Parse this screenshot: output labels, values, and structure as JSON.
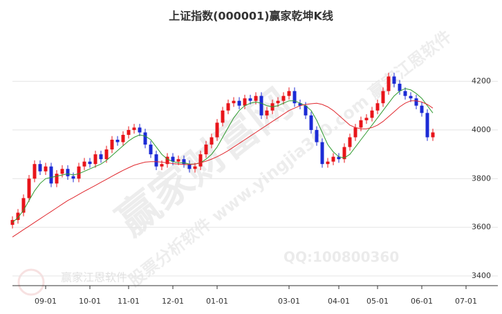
{
  "chart_data": {
    "type": "candlestick",
    "title": "上证指数(000001)赢家乾坤K线",
    "watermarks": [
      "赢家财富网",
      "股票分析软件 www.yingjia360.com 赢家江恩软件",
      "QQ:100800360",
      "赢家江恩软件"
    ],
    "up_color": "#e8141a",
    "down_color": "#1c2bd6",
    "ylim": [
      3380,
      4400
    ],
    "yticks": [
      3400,
      3600,
      3800,
      4000,
      4200
    ],
    "grid": true,
    "categories": [
      null,
      null,
      null,
      null,
      null,
      null,
      "09-01",
      null,
      null,
      null,
      null,
      null,
      null,
      null,
      "10-01",
      null,
      null,
      null,
      null,
      null,
      null,
      "11-01",
      null,
      null,
      null,
      null,
      null,
      null,
      null,
      "12-01",
      null,
      null,
      null,
      null,
      null,
      null,
      null,
      "01-01",
      null,
      null,
      null,
      null,
      null,
      null,
      null,
      null,
      null,
      null,
      null,
      null,
      "03-01",
      null,
      null,
      null,
      null,
      null,
      null,
      null,
      null,
      "04-01",
      null,
      null,
      null,
      null,
      null,
      null,
      "05-01",
      null,
      null,
      null,
      null,
      null,
      null,
      null,
      "06-01",
      null,
      null,
      null,
      null,
      null,
      null,
      null,
      "07-01",
      null,
      null,
      null,
      null,
      null
    ],
    "open": [
      3610,
      3630,
      3660,
      3720,
      3800,
      3860,
      3830,
      3850,
      3780,
      3820,
      3840,
      3810,
      3800,
      3850,
      3870,
      3860,
      3900,
      3880,
      3920,
      3960,
      3950,
      3980,
      4000,
      4010,
      3990,
      3940,
      3900,
      3850,
      3860,
      3890,
      3870,
      3880,
      3860,
      3840,
      3850,
      3900,
      3940,
      3970,
      4030,
      4080,
      4110,
      4120,
      4100,
      4130,
      4120,
      4140,
      4060,
      4080,
      4110,
      4120,
      4140,
      4160,
      4110,
      4100,
      4060,
      4000,
      3950,
      3860,
      3870,
      3890,
      3880,
      3930,
      3970,
      4010,
      4040,
      4050,
      4080,
      4110,
      4160,
      4220,
      4190,
      4160,
      4140,
      4130,
      4100,
      4070,
      3970,
      null,
      null,
      null,
      null,
      null,
      null,
      null,
      null,
      null,
      null,
      null
    ],
    "high": [
      3645,
      3675,
      3735,
      3815,
      3875,
      3875,
      3865,
      3865,
      3835,
      3855,
      3855,
      3825,
      3865,
      3885,
      3885,
      3915,
      3915,
      3935,
      3975,
      3975,
      3995,
      4015,
      4025,
      4025,
      4005,
      3955,
      3915,
      3875,
      3905,
      3905,
      3895,
      3895,
      3875,
      3865,
      3915,
      3955,
      3985,
      4045,
      4095,
      4125,
      4135,
      4135,
      4145,
      4145,
      4155,
      4155,
      4095,
      4125,
      4135,
      4155,
      4175,
      4175,
      4125,
      4115,
      4075,
      4015,
      3965,
      3885,
      3905,
      3905,
      3945,
      3985,
      4025,
      4055,
      4065,
      4095,
      4125,
      4175,
      4235,
      4235,
      4205,
      4175,
      4155,
      4145,
      4115,
      4085,
      4005,
      null,
      null,
      null,
      null,
      null,
      null,
      null,
      null,
      null,
      null,
      null
    ],
    "low": [
      3595,
      3615,
      3645,
      3705,
      3785,
      3815,
      3815,
      3765,
      3765,
      3805,
      3795,
      3785,
      3785,
      3835,
      3845,
      3845,
      3865,
      3865,
      3905,
      3935,
      3935,
      3965,
      3985,
      3975,
      3925,
      3885,
      3835,
      3835,
      3845,
      3855,
      3855,
      3845,
      3825,
      3825,
      3835,
      3885,
      3925,
      3955,
      4015,
      4065,
      4095,
      4085,
      4085,
      4105,
      4105,
      4045,
      4045,
      4065,
      4095,
      4105,
      4125,
      4095,
      4085,
      4045,
      3985,
      3935,
      3845,
      3845,
      3855,
      3865,
      3865,
      3915,
      3955,
      3995,
      4025,
      4035,
      4065,
      4095,
      4145,
      4175,
      4145,
      4125,
      4115,
      4085,
      4055,
      3955,
      3955,
      null,
      null,
      null,
      null,
      null,
      null,
      null,
      null,
      null,
      null,
      null
    ],
    "close": [
      3630,
      3660,
      3720,
      3800,
      3860,
      3830,
      3850,
      3780,
      3820,
      3840,
      3810,
      3800,
      3850,
      3870,
      3860,
      3900,
      3880,
      3920,
      3960,
      3950,
      3980,
      4000,
      4010,
      3990,
      3940,
      3900,
      3850,
      3860,
      3890,
      3870,
      3880,
      3860,
      3840,
      3850,
      3900,
      3940,
      3970,
      4030,
      4080,
      4110,
      4120,
      4100,
      4130,
      4120,
      4140,
      4060,
      4080,
      4110,
      4120,
      4140,
      4160,
      4110,
      4100,
      4060,
      4000,
      3950,
      3860,
      3870,
      3890,
      3880,
      3930,
      3970,
      4010,
      4040,
      4050,
      4080,
      4110,
      4160,
      4220,
      4190,
      4160,
      4140,
      4130,
      4100,
      4070,
      3970,
      3990,
      null,
      null,
      null,
      null,
      null,
      null,
      null,
      null,
      null,
      null,
      null
    ],
    "lines": [
      {
        "color": "#2e9a2e",
        "values": [
          3620,
          3640,
          3670,
          3710,
          3750,
          3780,
          3800,
          3805,
          3810,
          3815,
          3820,
          3815,
          3820,
          3830,
          3840,
          3850,
          3860,
          3875,
          3895,
          3915,
          3935,
          3955,
          3970,
          3980,
          3975,
          3960,
          3930,
          3900,
          3880,
          3870,
          3865,
          3865,
          3860,
          3860,
          3865,
          3880,
          3900,
          3930,
          3970,
          4010,
          4050,
          4080,
          4100,
          4110,
          4115,
          4110,
          4100,
          4095,
          4100,
          4110,
          4120,
          4120,
          4110,
          4100,
          4080,
          4040,
          3990,
          3940,
          3910,
          3890,
          3885,
          3900,
          3930,
          3960,
          3990,
          4020,
          4050,
          4080,
          4110,
          4140,
          4160,
          4170,
          4165,
          4150,
          4130,
          4100,
          4070,
          null,
          null,
          null,
          null,
          null,
          null,
          null,
          null,
          null,
          null,
          null
        ]
      },
      {
        "color": "#e0282e",
        "values": [
          3560,
          3575,
          3590,
          3605,
          3620,
          3635,
          3650,
          3665,
          3680,
          3695,
          3710,
          3722,
          3735,
          3748,
          3760,
          3772,
          3785,
          3797,
          3810,
          3822,
          3834,
          3845,
          3855,
          3862,
          3868,
          3870,
          3870,
          3868,
          3865,
          3862,
          3860,
          3858,
          3858,
          3860,
          3865,
          3872,
          3880,
          3890,
          3902,
          3915,
          3930,
          3945,
          3960,
          3975,
          3990,
          4005,
          4020,
          4035,
          4050,
          4065,
          4080,
          4090,
          4100,
          4105,
          4108,
          4110,
          4105,
          4095,
          4080,
          4060,
          4040,
          4020,
          4010,
          4005,
          4005,
          4010,
          4020,
          4035,
          4055,
          4075,
          4095,
          4110,
          4120,
          4120,
          4115,
          4105,
          4090,
          null,
          null,
          null,
          null,
          null,
          null,
          null,
          null,
          null,
          null,
          null
        ]
      }
    ]
  }
}
